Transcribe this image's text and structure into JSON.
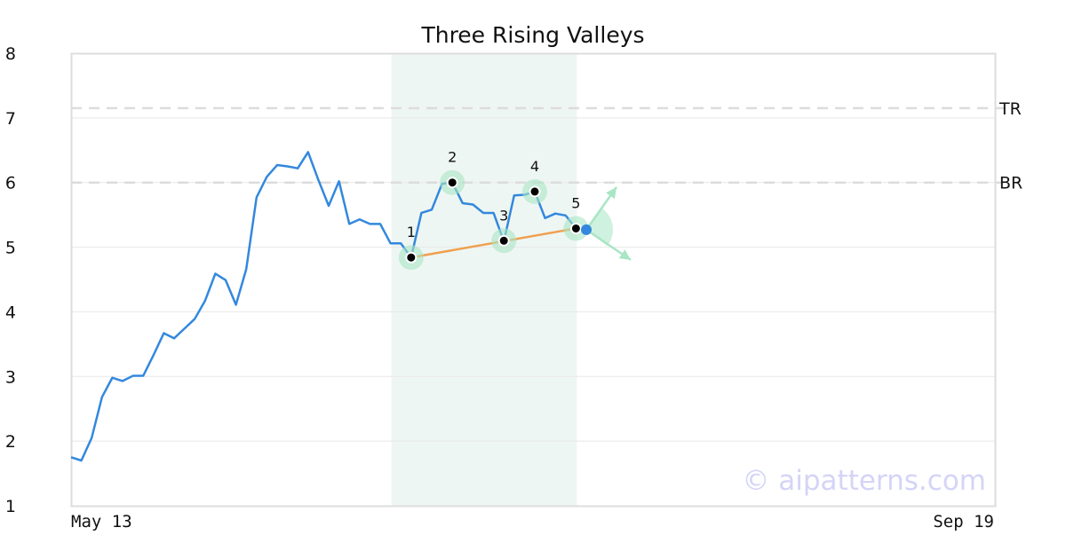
{
  "chart_data": {
    "type": "line",
    "title": "Three Rising Valleys",
    "xlabel": "",
    "ylabel": "",
    "x_tick_labels": [
      "May 13",
      "Sep 19"
    ],
    "y_ticks": [
      1,
      2,
      3,
      4,
      5,
      6,
      7,
      8
    ],
    "ylim": [
      1,
      8
    ],
    "grid": "horizontal",
    "series": [
      {
        "color": "#3388dd",
        "values": [
          1.75,
          1.7,
          2.05,
          2.68,
          2.98,
          2.93,
          3.01,
          3.01,
          3.33,
          3.67,
          3.59,
          3.74,
          3.89,
          4.17,
          4.59,
          4.49,
          4.11,
          4.66,
          5.77,
          6.09,
          6.27,
          6.25,
          6.22,
          6.47,
          6.04,
          5.64,
          6.02,
          5.36,
          5.43,
          5.36,
          5.36,
          5.06,
          5.06,
          4.84,
          5.53,
          5.58,
          5.98,
          6.0,
          5.68,
          5.66,
          5.53,
          5.53,
          5.09,
          5.8,
          5.81,
          5.86,
          5.45,
          5.52,
          5.49,
          5.29,
          5.27
        ]
      }
    ],
    "highlight_range": {
      "from_index": 31,
      "to_index": 49,
      "color": "#eef6f3"
    },
    "reference_lines": [
      {
        "label": "TR",
        "value": 7.15
      },
      {
        "label": "BR",
        "value": 6.0
      }
    ],
    "pattern_points": [
      {
        "label": "1",
        "index": 33,
        "value": 4.84
      },
      {
        "label": "2",
        "index": 37,
        "value": 6.0
      },
      {
        "label": "3",
        "index": 42,
        "value": 5.1
      },
      {
        "label": "4",
        "index": 45,
        "value": 5.86
      },
      {
        "label": "5",
        "index": 49,
        "value": 5.29
      }
    ],
    "trend_line": {
      "from_point": 0,
      "to_point": 4,
      "color": "#f0a050"
    },
    "current_point": {
      "index": 50,
      "value": 5.27,
      "color": "#3388dd"
    },
    "projection_color": "#a8e6c4"
  },
  "watermark": "© aipatterns.com"
}
